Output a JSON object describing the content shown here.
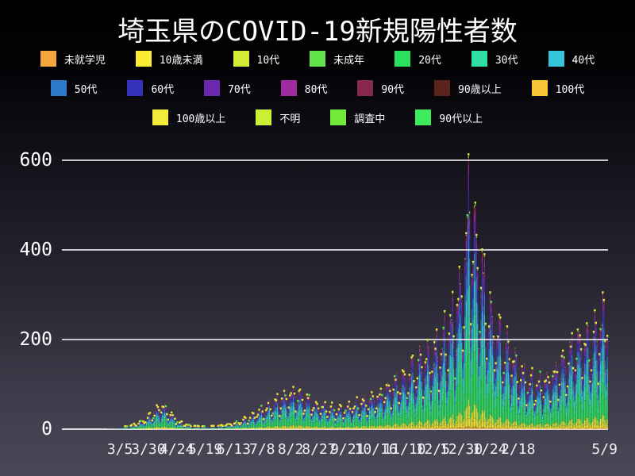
{
  "title": "埼玉県のCOVID-19新規陽性者数",
  "legend": {
    "rows": [
      [
        {
          "label": "未就学児",
          "color": "#f2a63b"
        },
        {
          "label": "10歳未満",
          "color": "#f8ed31"
        },
        {
          "label": "10代",
          "color": "#d4eb37"
        },
        {
          "label": "未成年",
          "color": "#63e34a"
        },
        {
          "label": "20代",
          "color": "#2ce05f"
        },
        {
          "label": "30代",
          "color": "#31dfa2"
        },
        {
          "label": "40代",
          "color": "#36c4dc"
        }
      ],
      [
        {
          "label": "50代",
          "color": "#2f79cb"
        },
        {
          "label": "60代",
          "color": "#3431bb"
        },
        {
          "label": "70代",
          "color": "#6c28ac"
        },
        {
          "label": "80代",
          "color": "#a02b9e"
        },
        {
          "label": "90代",
          "color": "#87294f"
        },
        {
          "label": "90歳以上",
          "color": "#5a231d"
        },
        {
          "label": "100代",
          "color": "#f7c53a"
        }
      ],
      [
        {
          "label": "100歳以上",
          "color": "#f4ea3c"
        },
        {
          "label": "不明",
          "color": "#c9ef37"
        },
        {
          "label": "調査中",
          "color": "#72e93a"
        },
        {
          "label": "90代以上",
          "color": "#3eeb5e"
        }
      ]
    ]
  },
  "chart_data": {
    "type": "bar",
    "stacked": true,
    "title": "埼玉県のCOVID-19新規陽性者数",
    "xlabel": "",
    "ylabel": "",
    "ylim": [
      0,
      620
    ],
    "y_ticks": [
      0,
      200,
      400,
      600
    ],
    "grid": true,
    "x_tick_labels": [
      "3/5",
      "3/30",
      "4/24",
      "5/19",
      "6/13",
      "7/8",
      "8/2",
      "8/27",
      "9/21",
      "10/16",
      "11/10",
      "12/5",
      "12/30",
      "1/24",
      "2/18",
      "5/9"
    ],
    "x_tick_days": [
      51,
      76,
      101,
      126,
      151,
      176,
      201,
      226,
      251,
      276,
      301,
      326,
      351,
      376,
      401,
      477
    ],
    "n_days": 480,
    "series_order": [
      "未就学児",
      "10歳未満",
      "10代",
      "未成年",
      "20代",
      "30代",
      "40代",
      "50代",
      "60代",
      "70代",
      "80代",
      "90代",
      "90歳以上",
      "100代",
      "100歳以上",
      "不明",
      "調査中",
      "90代以上"
    ],
    "series_colors": [
      "#f2a63b",
      "#f8ed31",
      "#d4eb37",
      "#63e34a",
      "#2ce05f",
      "#31dfa2",
      "#36c4dc",
      "#2f79cb",
      "#3431bb",
      "#6c28ac",
      "#a02b9e",
      "#87294f",
      "#5a231d",
      "#f7c53a",
      "#f4ea3c",
      "#c9ef37",
      "#72e93a",
      "#3eeb5e"
    ],
    "age_share": [
      0.012,
      0.038,
      0.06,
      0.005,
      0.23,
      0.17,
      0.145,
      0.125,
      0.08,
      0.06,
      0.04,
      0.02,
      0.005,
      0.002,
      0.002,
      0.002,
      0.002,
      0.002
    ],
    "daily_total_keyframes": [
      [
        0,
        0
      ],
      [
        35,
        0.4
      ],
      [
        45,
        1
      ],
      [
        55,
        3
      ],
      [
        62,
        6
      ],
      [
        70,
        14
      ],
      [
        80,
        30
      ],
      [
        88,
        46
      ],
      [
        95,
        30
      ],
      [
        103,
        12
      ],
      [
        112,
        5
      ],
      [
        126,
        3
      ],
      [
        140,
        5
      ],
      [
        152,
        10
      ],
      [
        165,
        22
      ],
      [
        178,
        40
      ],
      [
        192,
        58
      ],
      [
        204,
        72
      ],
      [
        212,
        60
      ],
      [
        222,
        48
      ],
      [
        232,
        42
      ],
      [
        244,
        38
      ],
      [
        256,
        45
      ],
      [
        268,
        55
      ],
      [
        280,
        68
      ],
      [
        292,
        88
      ],
      [
        304,
        110
      ],
      [
        316,
        135
      ],
      [
        328,
        155
      ],
      [
        338,
        185
      ],
      [
        346,
        235
      ],
      [
        352,
        300
      ],
      [
        355,
        380
      ],
      [
        357,
        470
      ],
      [
        360,
        430
      ],
      [
        364,
        360
      ],
      [
        370,
        290
      ],
      [
        378,
        220
      ],
      [
        386,
        175
      ],
      [
        394,
        150
      ],
      [
        402,
        115
      ],
      [
        410,
        95
      ],
      [
        418,
        88
      ],
      [
        426,
        95
      ],
      [
        434,
        115
      ],
      [
        442,
        135
      ],
      [
        450,
        160
      ],
      [
        456,
        185
      ],
      [
        462,
        170
      ],
      [
        468,
        185
      ],
      [
        474,
        215
      ],
      [
        479,
        245
      ]
    ],
    "weekly_pattern": [
      1.3,
      0.95,
      0.55,
      0.75,
      1.0,
      1.18,
      1.27
    ],
    "texture_pattern": [
      1.05,
      0.92,
      1.08,
      0.97,
      0.88,
      1.0,
      1.12,
      0.95,
      1.06,
      0.9,
      1.07
    ],
    "peak_visible_value": 610,
    "marker_colors": [
      "#ece73c",
      "#4fe84a"
    ],
    "gridline_color": "#f2f2f2",
    "baseline_color": "#ffffff"
  }
}
